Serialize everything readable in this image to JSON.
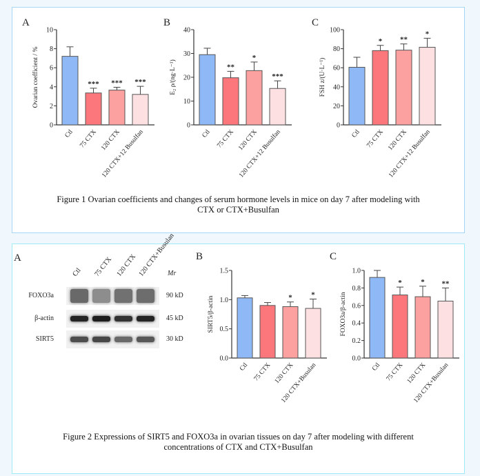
{
  "colors": {
    "ctl": "#8fb8f7",
    "ctx75": "#fb777c",
    "ctx120": "#fca0a0",
    "busulfan": "#fde0e1",
    "edge": "#555555"
  },
  "figure1": {
    "caption_line1": "Figure 1 Ovarian coefficients and changes of serum hormone levels in mice on day 7 after modeling with",
    "caption_line2": "CTX or CTX+Busulfan"
  },
  "figure2": {
    "caption_line1": "Figure 2 Expressions of SIRT5 and FOXO3a in ovarian tissues on day 7 after modeling with different",
    "caption_line2": "concentrations of CTX and CTX+Busulfan",
    "blot": {
      "panel_letter": "A",
      "lanes": [
        "Ctl",
        "75 CTX",
        "120 CTX",
        "120 CTX+Busulan"
      ],
      "mr_label": "Mr",
      "rows": [
        {
          "protein": "FOXO3a",
          "mw": "90 kD",
          "intensity": [
            0.62,
            0.45,
            0.58,
            0.6
          ]
        },
        {
          "protein": "β-actin",
          "mw": "45 kD",
          "intensity": [
            0.95,
            0.98,
            0.88,
            0.95
          ]
        },
        {
          "protein": "SIRT5",
          "mw": "30 kD",
          "intensity": [
            0.75,
            0.78,
            0.62,
            0.7
          ]
        }
      ]
    }
  },
  "chart_data": [
    {
      "panel": "A",
      "type": "bar",
      "title": "",
      "xlabel": "",
      "ylabel": "Ovarian coefficient / %",
      "categories": [
        "Ctl",
        "75 CTX",
        "120 CTX",
        "120 CTX+12 Busulfan"
      ],
      "values": [
        7.2,
        3.35,
        3.65,
        3.2
      ],
      "errors": [
        1.0,
        0.5,
        0.3,
        0.85
      ],
      "significance": [
        "",
        "***",
        "***",
        "***"
      ],
      "ylim": [
        0,
        10
      ],
      "yticks": [
        0,
        2,
        4,
        6,
        8,
        10
      ],
      "grid": false
    },
    {
      "panel": "B",
      "type": "bar",
      "title": "",
      "xlabel": "",
      "ylabel": "E₂ ρ/(ng·L⁻¹)",
      "categories": [
        "Ctl",
        "75 CTX",
        "120 CTX",
        "120 CTX+12 Busulfan"
      ],
      "values": [
        29.5,
        19.8,
        22.8,
        15.3
      ],
      "errors": [
        2.7,
        2.7,
        3.6,
        3.2
      ],
      "significance": [
        "",
        "**",
        "*",
        "***"
      ],
      "ylim": [
        0,
        40
      ],
      "yticks": [
        0,
        10,
        20,
        30,
        40
      ],
      "grid": false
    },
    {
      "panel": "C",
      "type": "bar",
      "title": "",
      "xlabel": "",
      "ylabel": "FSH z/(U·L⁻¹)",
      "categories": [
        "Ctl",
        "75 CTX",
        "120 CTX",
        "120 CTX+12 Busulfan"
      ],
      "values": [
        60.5,
        78.0,
        78.5,
        81.5
      ],
      "errors": [
        10.5,
        5.5,
        6.5,
        9.5
      ],
      "significance": [
        "",
        "*",
        "**",
        "*"
      ],
      "ylim": [
        0,
        100
      ],
      "yticks": [
        0,
        20,
        40,
        60,
        80,
        100
      ],
      "grid": false
    },
    {
      "panel": "B",
      "type": "bar",
      "title": "",
      "xlabel": "",
      "ylabel": "SIRT5/β-actin",
      "categories": [
        "Ctl",
        "75 CTX",
        "120 CTX",
        "120 CTX+Busulan"
      ],
      "values": [
        1.03,
        0.9,
        0.88,
        0.85
      ],
      "errors": [
        0.04,
        0.05,
        0.08,
        0.16
      ],
      "significance": [
        "",
        "",
        "*",
        "*"
      ],
      "ylim": [
        0,
        1.5
      ],
      "yticks": [
        0.0,
        0.5,
        1.0,
        1.5
      ],
      "ytick_decimals": 1,
      "grid": false
    },
    {
      "panel": "C",
      "type": "bar",
      "title": "",
      "xlabel": "",
      "ylabel": "FOXO3a/β-actin",
      "categories": [
        "Ctl",
        "75 CTX",
        "120 CTX",
        "120 CTX+Busulan"
      ],
      "values": [
        0.92,
        0.72,
        0.7,
        0.65
      ],
      "errors": [
        0.08,
        0.09,
        0.12,
        0.15
      ],
      "significance": [
        "",
        "*",
        "*",
        "**"
      ],
      "ylim": [
        0,
        1.0
      ],
      "yticks": [
        0.0,
        0.2,
        0.4,
        0.6,
        0.8,
        1.0
      ],
      "ytick_decimals": 1,
      "grid": false
    }
  ]
}
